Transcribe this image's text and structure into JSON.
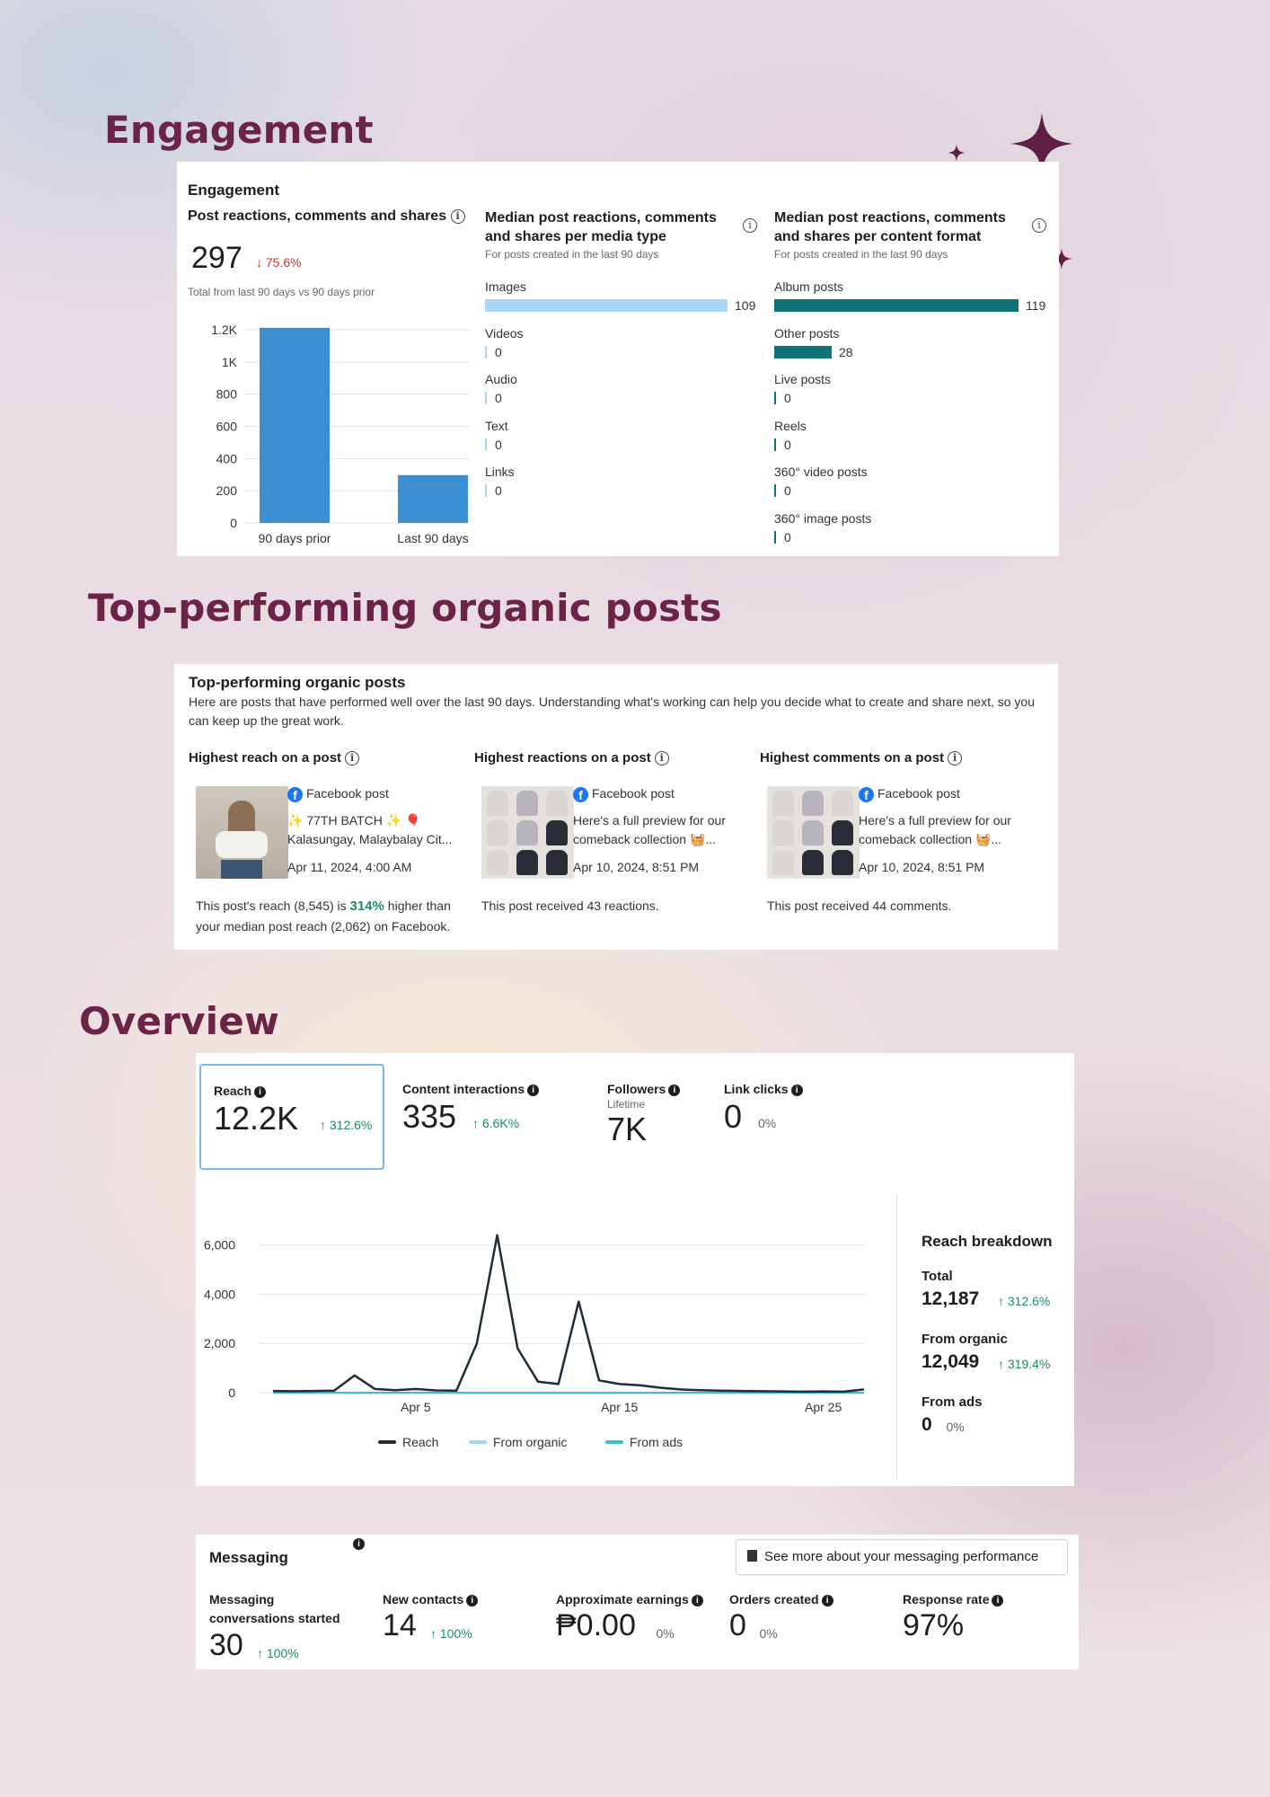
{
  "sections": {
    "engagement_title": "Engagement",
    "top_posts_title": "Top-performing organic posts",
    "overview_title": "Overview"
  },
  "engagement": {
    "card_title": "Engagement",
    "reactions": {
      "title": "Post reactions, comments and shares",
      "value": "297",
      "change": "↓ 75.6%",
      "caption": "Total from last 90 days vs 90 days prior"
    },
    "media_type": {
      "title": "Median post reactions, comments and shares per media type",
      "subtitle": "For posts created in the last 90 days",
      "color": "#a6d8f5",
      "items": [
        {
          "label": "Images",
          "value": 109
        },
        {
          "label": "Videos",
          "value": 0
        },
        {
          "label": "Audio",
          "value": 0
        },
        {
          "label": "Text",
          "value": 0
        },
        {
          "label": "Links",
          "value": 0
        }
      ]
    },
    "content_format": {
      "title": "Median post reactions, comments and shares per content format",
      "subtitle": "For posts created in the last 90 days",
      "color": "#0e7377",
      "items": [
        {
          "label": "Album posts",
          "value": 119
        },
        {
          "label": "Other posts",
          "value": 28
        },
        {
          "label": "Live posts",
          "value": 0
        },
        {
          "label": "Reels",
          "value": 0
        },
        {
          "label": "360° video posts",
          "value": 0
        },
        {
          "label": "360° image posts",
          "value": 0
        }
      ]
    }
  },
  "top_posts": {
    "card_title": "Top-performing organic posts",
    "description": "Here are posts that have performed well over the last 90 days. Understanding what's working can help you decide what to create and share next, so you can keep up the great work.",
    "columns": [
      {
        "heading": "Highest reach on a post",
        "post_type": "Facebook post",
        "line1": "✨ 77TH BATCH ✨ 🎈",
        "line2": "Kalasungay, Malaybalay Cit...",
        "date": "Apr 11, 2024, 4:00 AM",
        "footer_pre": "This post's reach (8,545) is ",
        "footer_highlight": "314%",
        "footer_post": " higher than your median post reach (2,062) on Facebook."
      },
      {
        "heading": "Highest reactions on a post",
        "post_type": "Facebook post",
        "line1": "Here's a full preview for our",
        "line2": "comeback collection 🧺...",
        "date": "Apr 10, 2024, 8:51 PM",
        "footer_pre": "This post received 43 reactions.",
        "footer_highlight": "",
        "footer_post": ""
      },
      {
        "heading": "Highest comments on a post",
        "post_type": "Facebook post",
        "line1": "Here's a full preview for our",
        "line2": "comeback collection 🧺...",
        "date": "Apr 10, 2024, 8:51 PM",
        "footer_pre": "This post received 44 comments.",
        "footer_highlight": "",
        "footer_post": ""
      }
    ]
  },
  "overview": {
    "tabs": [
      {
        "label": "Reach",
        "value": "12.2K",
        "change": "↑ 312.6%",
        "sub": ""
      },
      {
        "label": "Content interactions",
        "value": "335",
        "change": "↑ 6.6K%",
        "sub": ""
      },
      {
        "label": "Followers",
        "value": "7K",
        "change": "",
        "sub": "Lifetime"
      },
      {
        "label": "Link clicks",
        "value": "0",
        "change": "0%",
        "sub": ""
      }
    ],
    "breakdown": {
      "title": "Reach breakdown",
      "items": [
        {
          "label": "Total",
          "value": "12,187",
          "change": "↑ 312.6%"
        },
        {
          "label": "From organic",
          "value": "12,049",
          "change": "↑ 319.4%"
        },
        {
          "label": "From ads",
          "value": "0",
          "change": "0%"
        }
      ]
    }
  },
  "messaging": {
    "title": "Messaging",
    "link_button": "See more about your messaging performance",
    "metrics": [
      {
        "label": "Messaging conversations started",
        "value": "30",
        "change": "↑ 100%"
      },
      {
        "label": "New contacts",
        "value": "14",
        "change": "↑ 100%"
      },
      {
        "label": "Approximate earnings",
        "value": "₱0.00",
        "change": "0%"
      },
      {
        "label": "Orders created",
        "value": "0",
        "change": "0%"
      },
      {
        "label": "Response rate",
        "value": "97%",
        "change": ""
      }
    ]
  },
  "chart_data": [
    {
      "type": "bar",
      "categories": [
        "90 days prior",
        "Last 90 days"
      ],
      "values": [
        1217,
        297
      ],
      "ylim": [
        0,
        1200
      ],
      "yticks": [
        "0",
        "200",
        "400",
        "600",
        "800",
        "1K",
        "1.2K"
      ],
      "color": "#3b8fd0"
    },
    {
      "type": "line",
      "x": [
        "Mar 29",
        "Mar 30",
        "Mar 31",
        "Apr 1",
        "Apr 2",
        "Apr 3",
        "Apr 4",
        "Apr 5",
        "Apr 6",
        "Apr 7",
        "Apr 8",
        "Apr 9",
        "Apr 10",
        "Apr 11",
        "Apr 12",
        "Apr 13",
        "Apr 14",
        "Apr 15",
        "Apr 16",
        "Apr 17",
        "Apr 18",
        "Apr 19",
        "Apr 20",
        "Apr 21",
        "Apr 22",
        "Apr 23",
        "Apr 24",
        "Apr 25",
        "Apr 26",
        "Apr 27"
      ],
      "xticks": [
        "Apr 5",
        "Apr 15",
        "Apr 25"
      ],
      "yticks": [
        "0",
        "2,000",
        "4,000",
        "6,000"
      ],
      "ylim": [
        0,
        6500
      ],
      "series": [
        {
          "name": "Reach",
          "color": "#1f2d38",
          "values": [
            70,
            60,
            70,
            80,
            700,
            150,
            100,
            150,
            90,
            80,
            2000,
            6400,
            1800,
            450,
            350,
            3700,
            500,
            350,
            300,
            200,
            130,
            100,
            80,
            70,
            60,
            50,
            40,
            50,
            40,
            130
          ]
        },
        {
          "name": "From organic",
          "color": "#9fd6f5",
          "values": [
            70,
            60,
            70,
            80,
            700,
            150,
            100,
            150,
            90,
            80,
            2000,
            6400,
            1800,
            450,
            350,
            3700,
            500,
            350,
            300,
            200,
            130,
            100,
            80,
            70,
            60,
            50,
            40,
            50,
            40,
            130
          ]
        },
        {
          "name": "From ads",
          "color": "#2ec4c9",
          "values": [
            0,
            0,
            0,
            0,
            0,
            0,
            0,
            0,
            0,
            0,
            0,
            0,
            0,
            0,
            0,
            0,
            0,
            0,
            0,
            0,
            0,
            0,
            0,
            0,
            0,
            0,
            0,
            0,
            0,
            0
          ]
        }
      ]
    }
  ]
}
